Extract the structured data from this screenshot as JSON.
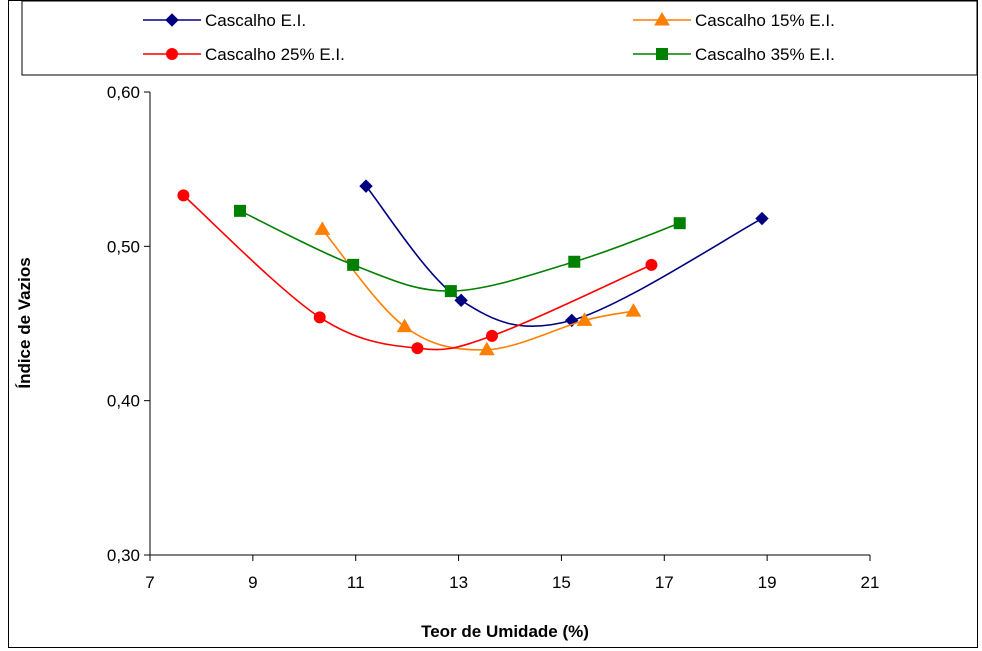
{
  "chart_data": {
    "type": "line",
    "title": "",
    "xlabel": "Teor de Umidade (%)",
    "ylabel": "Índice de Vazios",
    "xlim": [
      7,
      21
    ],
    "ylim": [
      0.3,
      0.6
    ],
    "xticks": [
      "7",
      "9",
      "11",
      "13",
      "15",
      "17",
      "19",
      "21"
    ],
    "yticks": [
      "0,30",
      "0,40",
      "0,50",
      "0,60"
    ],
    "grid": false,
    "legend_placement": "top",
    "smooth": true,
    "series": [
      {
        "name": "Cascalho E.I.",
        "color": "#000080",
        "marker": "diamond",
        "x": [
          11.2,
          13.05,
          15.2,
          18.9
        ],
        "y": [
          0.539,
          0.465,
          0.452,
          0.518
        ]
      },
      {
        "name": "Cascalho 15% E.I.",
        "color": "#FF7F00",
        "marker": "triangle",
        "x": [
          10.35,
          11.95,
          13.55,
          15.45,
          16.4
        ],
        "y": [
          0.511,
          0.448,
          0.433,
          0.452,
          0.458
        ]
      },
      {
        "name": "Cascalho 25% E.I.",
        "color": "#FF0000",
        "marker": "circle",
        "x": [
          7.65,
          10.3,
          12.2,
          13.65,
          16.75
        ],
        "y": [
          0.533,
          0.454,
          0.434,
          0.442,
          0.488
        ]
      },
      {
        "name": "Cascalho 35% E.I.",
        "color": "#008000",
        "marker": "square",
        "x": [
          8.75,
          10.95,
          12.85,
          15.25,
          17.3
        ],
        "y": [
          0.523,
          0.488,
          0.471,
          0.49,
          0.515
        ]
      }
    ]
  }
}
